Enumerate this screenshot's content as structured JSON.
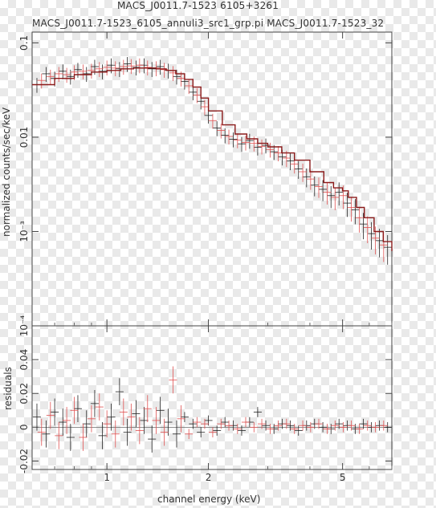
{
  "chart_data": [
    {
      "type": "scatter",
      "title": "MACS_J0011.7-1523 6105+3261",
      "subtitle": "MACS_J0011.7-1523_6105_annuli3_src1_grp.pi MACS_J0011.7-1523_32",
      "xlabel": "channel energy (keV)",
      "ylabel": "normalized counts/sec/keV",
      "xscale": "log",
      "yscale": "log",
      "xlim": [
        0.6,
        7.0
      ],
      "ylim": [
        0.0001,
        0.13
      ],
      "x_ticks": [
        {
          "value": 1,
          "label": "1"
        },
        {
          "value": 2,
          "label": "2"
        },
        {
          "value": 5,
          "label": "5"
        }
      ],
      "y_ticks": [
        {
          "value": 0.1,
          "label": "0.1"
        },
        {
          "value": 0.01,
          "label": "0.01"
        },
        {
          "value": 0.001,
          "label": "10⁻³"
        },
        {
          "value": 0.0001,
          "label": "10⁻⁴"
        }
      ],
      "grid": false,
      "series": [
        {
          "color": "#222222",
          "style": "crosses",
          "x": [
            0.62,
            0.66,
            0.7,
            0.74,
            0.78,
            0.82,
            0.87,
            0.92,
            0.97,
            1.03,
            1.09,
            1.15,
            1.22,
            1.29,
            1.36,
            1.44,
            1.52,
            1.61,
            1.7,
            1.8,
            1.9,
            2.0,
            2.12,
            2.24,
            2.37,
            2.51,
            2.65,
            2.8,
            2.96,
            3.13,
            3.31,
            3.5,
            3.7,
            3.91,
            4.13,
            4.37,
            4.62,
            4.88,
            5.16,
            5.45,
            5.76,
            6.09,
            6.43,
            6.8
          ],
          "y": [
            0.036,
            0.047,
            0.042,
            0.05,
            0.044,
            0.052,
            0.047,
            0.056,
            0.05,
            0.058,
            0.053,
            0.06,
            0.055,
            0.058,
            0.053,
            0.056,
            0.051,
            0.044,
            0.039,
            0.03,
            0.024,
            0.017,
            0.0125,
            0.0105,
            0.0095,
            0.0085,
            0.0092,
            0.0078,
            0.0082,
            0.007,
            0.0062,
            0.0056,
            0.0046,
            0.0038,
            0.0031,
            0.0028,
            0.0024,
            0.0026,
            0.002,
            0.0017,
            0.0012,
            0.00095,
            0.0008,
            0.00068
          ]
        },
        {
          "color": "#e05050",
          "style": "crosses",
          "x": [
            0.64,
            0.68,
            0.72,
            0.76,
            0.8,
            0.85,
            0.9,
            0.95,
            1.0,
            1.06,
            1.12,
            1.18,
            1.25,
            1.32,
            1.4,
            1.48,
            1.57,
            1.66,
            1.75,
            1.85,
            1.95,
            2.06,
            2.18,
            2.3,
            2.44,
            2.58,
            2.73,
            2.88,
            3.05,
            3.22,
            3.41,
            3.6,
            3.81,
            4.02,
            4.25,
            4.5,
            4.75,
            5.02,
            5.31,
            5.61,
            5.93,
            6.26,
            6.62
          ],
          "y": [
            0.04,
            0.044,
            0.047,
            0.046,
            0.049,
            0.05,
            0.051,
            0.053,
            0.055,
            0.054,
            0.056,
            0.057,
            0.058,
            0.055,
            0.054,
            0.052,
            0.048,
            0.042,
            0.035,
            0.028,
            0.021,
            0.015,
            0.0118,
            0.0102,
            0.0093,
            0.0088,
            0.0086,
            0.008,
            0.0074,
            0.0068,
            0.006,
            0.0052,
            0.0043,
            0.0036,
            0.003,
            0.0026,
            0.0023,
            0.0024,
            0.0018,
            0.0014,
            0.0011,
            0.00085,
            0.00072
          ]
        },
        {
          "color": "#8a1a1a",
          "style": "model-step",
          "x": [
            0.6,
            0.7,
            0.8,
            0.9,
            1.0,
            1.1,
            1.2,
            1.3,
            1.4,
            1.5,
            1.6,
            1.7,
            1.8,
            1.9,
            2.0,
            2.2,
            2.4,
            2.6,
            2.8,
            3.0,
            3.3,
            3.6,
            4.0,
            4.4,
            4.7,
            5.0,
            5.2,
            5.5,
            5.8,
            6.2,
            6.6,
            7.0
          ],
          "y": [
            0.036,
            0.042,
            0.046,
            0.049,
            0.051,
            0.053,
            0.054,
            0.054,
            0.053,
            0.051,
            0.047,
            0.041,
            0.034,
            0.026,
            0.019,
            0.0135,
            0.0108,
            0.0096,
            0.0086,
            0.0079,
            0.0068,
            0.0057,
            0.0043,
            0.0033,
            0.0029,
            0.0027,
            0.0023,
            0.0018,
            0.0014,
            0.001,
            0.00078,
            0.00062
          ]
        }
      ]
    },
    {
      "type": "scatter",
      "xlabel": "channel energy (keV)",
      "ylabel": "residuals",
      "xscale": "log",
      "xlim": [
        0.6,
        7.0
      ],
      "ylim": [
        -0.025,
        0.06
      ],
      "x_ticks": [
        {
          "value": 1,
          "label": "1"
        },
        {
          "value": 2,
          "label": "2"
        },
        {
          "value": 5,
          "label": "5"
        }
      ],
      "y_ticks": [
        {
          "value": 0.04,
          "label": "0.04"
        },
        {
          "value": 0.02,
          "label": "0.02"
        },
        {
          "value": 0,
          "label": "0"
        },
        {
          "value": -0.02,
          "label": "-0.02"
        }
      ],
      "grid": false,
      "series": [
        {
          "color": "#222222",
          "style": "crosses",
          "x": [
            0.62,
            0.66,
            0.7,
            0.74,
            0.78,
            0.82,
            0.87,
            0.92,
            0.97,
            1.03,
            1.09,
            1.15,
            1.22,
            1.29,
            1.36,
            1.44,
            1.52,
            1.61,
            1.7,
            1.8,
            1.9,
            2.0,
            2.12,
            2.24,
            2.37,
            2.51,
            2.65,
            2.8,
            2.96,
            3.13,
            3.31,
            3.5,
            3.7,
            3.91,
            4.13,
            4.37,
            4.62,
            4.88,
            5.16,
            5.45,
            5.76,
            6.09,
            6.43,
            6.8
          ],
          "y": [
            0.006,
            -0.004,
            0.009,
            0.003,
            -0.006,
            0.011,
            0.002,
            0.014,
            -0.005,
            0.006,
            0.021,
            -0.003,
            0.008,
            0.004,
            -0.007,
            0.01,
            0.003,
            -0.004,
            0.006,
            0.002,
            -0.003,
            0.004,
            -0.002,
            0.003,
            0.001,
            -0.002,
            0.003,
            0.009,
            0.001,
            -0.001,
            0.002,
            0.001,
            -0.002,
            0.001,
            0.002,
            0.0,
            -0.001,
            0.002,
            0.001,
            -0.001,
            0.002,
            0.0,
            0.001,
            0.0
          ]
        },
        {
          "color": "#e05050",
          "style": "crosses",
          "x": [
            0.64,
            0.68,
            0.72,
            0.76,
            0.8,
            0.85,
            0.9,
            0.95,
            1.0,
            1.06,
            1.12,
            1.18,
            1.25,
            1.32,
            1.4,
            1.48,
            1.57,
            1.66,
            1.75,
            1.85,
            1.95,
            2.06,
            2.18,
            2.3,
            2.44,
            2.58,
            2.73,
            2.88,
            3.05,
            3.22,
            3.41,
            3.6,
            3.81,
            4.02,
            4.25,
            4.5,
            4.75,
            5.02,
            5.31,
            5.61,
            5.93,
            6.26,
            6.62
          ],
          "y": [
            -0.003,
            0.007,
            -0.005,
            0.004,
            0.01,
            -0.006,
            0.005,
            0.012,
            0.002,
            -0.004,
            0.009,
            0.006,
            -0.002,
            0.011,
            0.004,
            -0.003,
            0.028,
            0.005,
            -0.004,
            0.003,
            0.002,
            -0.003,
            0.002,
            0.001,
            -0.001,
            0.003,
            0.0,
            0.002,
            -0.001,
            0.001,
            0.002,
            -0.001,
            0.001,
            0.0,
            0.002,
            -0.001,
            0.001,
            0.0,
            0.001,
            -0.001,
            0.001,
            0.0,
            0.001
          ]
        }
      ]
    }
  ]
}
